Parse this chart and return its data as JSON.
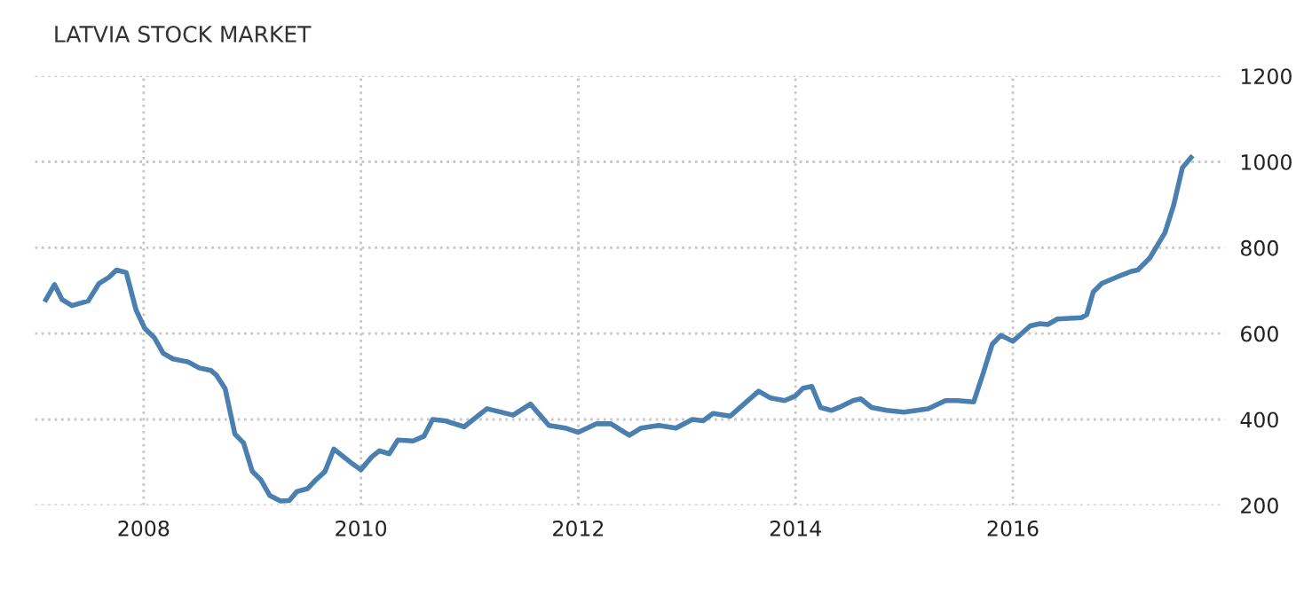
{
  "chart_data": {
    "type": "line",
    "title": "LATVIA STOCK MARKET",
    "x": [
      2007.1,
      2007.18,
      2007.25,
      2007.34,
      2007.49,
      2007.59,
      2007.68,
      2007.75,
      2007.84,
      2007.93,
      2008.01,
      2008.1,
      2008.18,
      2008.27,
      2008.41,
      2008.51,
      2008.62,
      2008.67,
      2008.75,
      2008.84,
      2008.92,
      2009.0,
      2009.08,
      2009.16,
      2009.26,
      2009.34,
      2009.41,
      2009.51,
      2009.58,
      2009.67,
      2009.75,
      2009.91,
      2010.0,
      2010.1,
      2010.17,
      2010.26,
      2010.34,
      2010.48,
      2010.58,
      2010.66,
      2010.77,
      2010.95,
      2011.16,
      2011.4,
      2011.56,
      2011.73,
      2011.88,
      2012.0,
      2012.17,
      2012.3,
      2012.47,
      2012.58,
      2012.74,
      2012.9,
      2013.05,
      2013.15,
      2013.24,
      2013.4,
      2013.66,
      2013.77,
      2013.9,
      2014.0,
      2014.07,
      2014.15,
      2014.23,
      2014.33,
      2014.4,
      2014.53,
      2014.6,
      2014.7,
      2014.84,
      2015.0,
      2015.22,
      2015.38,
      2015.49,
      2015.64,
      2015.73,
      2015.81,
      2015.89,
      2016.0,
      2016.16,
      2016.25,
      2016.32,
      2016.41,
      2016.63,
      2016.68,
      2016.74,
      2016.82,
      2016.98,
      2017.09,
      2017.15,
      2017.26,
      2017.4,
      2017.48,
      2017.56,
      2017.64
    ],
    "series": [
      {
        "color": "#4a7fb0",
        "values": [
          679,
          714,
          679,
          665,
          676,
          717,
          731,
          748,
          742,
          655,
          612,
          590,
          554,
          541,
          534,
          520,
          514,
          503,
          472,
          366,
          345,
          279,
          259,
          223,
          210,
          211,
          232,
          239,
          258,
          279,
          331,
          299,
          283,
          313,
          327,
          320,
          352,
          350,
          361,
          400,
          397,
          383,
          425,
          410,
          436,
          386,
          380,
          370,
          390,
          390,
          363,
          380,
          386,
          380,
          400,
          397,
          414,
          408,
          466,
          450,
          444,
          455,
          473,
          477,
          428,
          421,
          428,
          444,
          448,
          428,
          421,
          417,
          425,
          444,
          444,
          441,
          510,
          575,
          596,
          582,
          618,
          623,
          621,
          634,
          637,
          644,
          697,
          717,
          734,
          745,
          748,
          776,
          835,
          899,
          986,
          1010
        ]
      }
    ],
    "xlim": [
      2007.0,
      2017.95
    ],
    "ylim": [
      200,
      1200
    ],
    "xticks": [
      2008,
      2010,
      2012,
      2014,
      2016
    ],
    "yticks": [
      200,
      400,
      600,
      800,
      1000,
      1200
    ],
    "grid": true,
    "marker": "none",
    "line_style": "solid",
    "legend": false
  }
}
